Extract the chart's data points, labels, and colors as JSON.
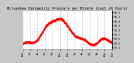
{
  "title": "Milwaukee Barometric Pressure per Minute (Last 24 Hours)",
  "background_color": "#c8c8c8",
  "plot_bg_color": "#ffffff",
  "grid_color": "#aaaaaa",
  "line_color": "#ff0000",
  "y_min": 29.35,
  "y_max": 30.25,
  "y_ticks": [
    29.4,
    29.5,
    29.6,
    29.7,
    29.8,
    29.9,
    30.0,
    30.1,
    30.2
  ],
  "y_tick_labels": [
    "29.4",
    "29.5",
    "29.6",
    "29.7",
    "29.8",
    "29.9",
    "30.0",
    "30.1",
    "30.2"
  ],
  "num_points": 1440,
  "title_fontsize": 3.8,
  "tick_fontsize": 3.0,
  "x_tick_positions": [
    0,
    2,
    4,
    6,
    8,
    10,
    12,
    14,
    16,
    18,
    20,
    22,
    24
  ],
  "x_tick_labels": [
    "12a",
    "2a",
    "4a",
    "6a",
    "8a",
    "10a",
    "12p",
    "2p",
    "4p",
    "6p",
    "8p",
    "10p",
    "12a"
  ]
}
